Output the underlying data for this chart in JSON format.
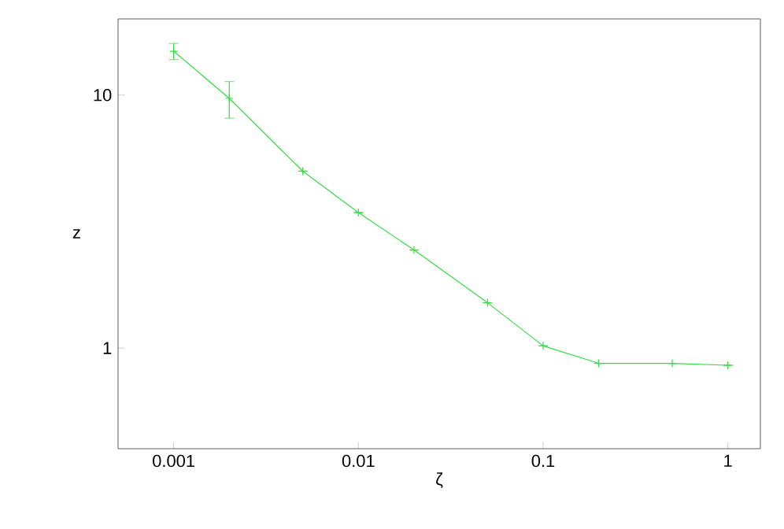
{
  "chart_data": {
    "type": "line",
    "xlabel": "ζ",
    "ylabel": "z",
    "log": "xy",
    "x": [
      0.001,
      0.002,
      0.005,
      0.01,
      0.02,
      0.05,
      0.1,
      0.2,
      0.5,
      1
    ],
    "series": [
      {
        "color": "#33dd44",
        "values": [
          14.9,
          9.7,
          5.0,
          3.43,
          2.44,
          1.51,
          1.02,
          0.87,
          0.87,
          0.855
        ],
        "errors": [
          [
            13.8,
            16.0
          ],
          [
            8.1,
            11.3
          ],
          null,
          null,
          null,
          null,
          null,
          null,
          null,
          null
        ]
      }
    ],
    "xlim": [
      0.0005,
      1.5
    ],
    "ylim": [
      0.4,
      20
    ],
    "xticks": [
      0.001,
      0.01,
      0.1,
      1
    ],
    "yticks": [
      1,
      10
    ],
    "marker": "cross",
    "line_style": "solid"
  }
}
